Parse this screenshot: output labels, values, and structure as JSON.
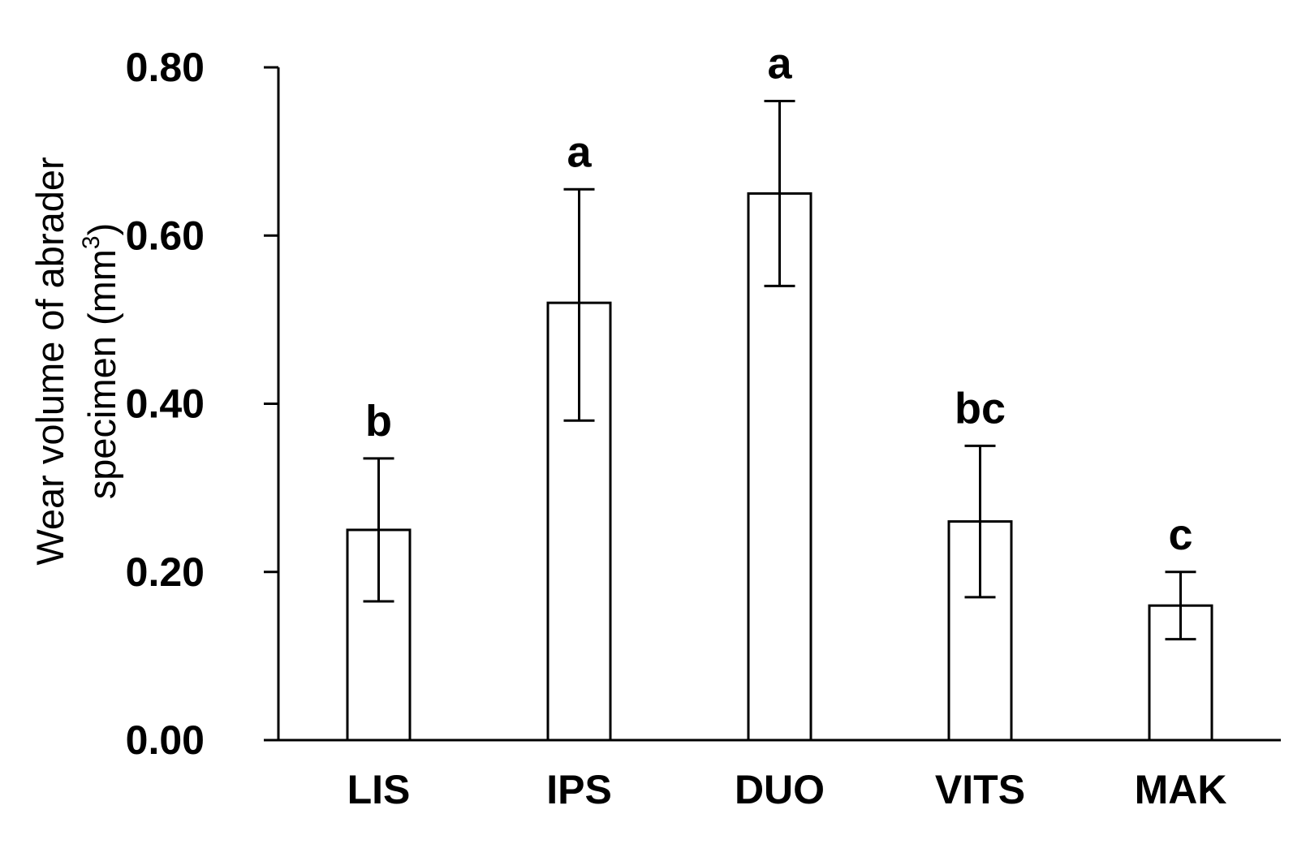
{
  "chart_data": {
    "type": "bar",
    "title": "",
    "xlabel": "",
    "ylabel": {
      "line1": "Wear volume of abrader",
      "line2_prefix": "specimen (mm",
      "line2_superscript": "3",
      "line2_suffix": ")"
    },
    "categories": [
      "LIS",
      "IPS",
      "DUO",
      "VITS",
      "MAK"
    ],
    "values": [
      0.25,
      0.52,
      0.65,
      0.26,
      0.16
    ],
    "error_low": [
      0.165,
      0.38,
      0.54,
      0.17,
      0.12
    ],
    "error_high": [
      0.335,
      0.655,
      0.76,
      0.35,
      0.2
    ],
    "significance": [
      "b",
      "a",
      "a",
      "bc",
      "c"
    ],
    "ylim": [
      0,
      0.8
    ],
    "yticks": [
      0.0,
      0.2,
      0.4,
      0.6,
      0.8
    ],
    "ytick_labels": [
      "0.00",
      "0.20",
      "0.40",
      "0.60",
      "0.80"
    ],
    "grid": false,
    "bar_fill": "#ffffff",
    "bar_stroke": "#000000"
  }
}
